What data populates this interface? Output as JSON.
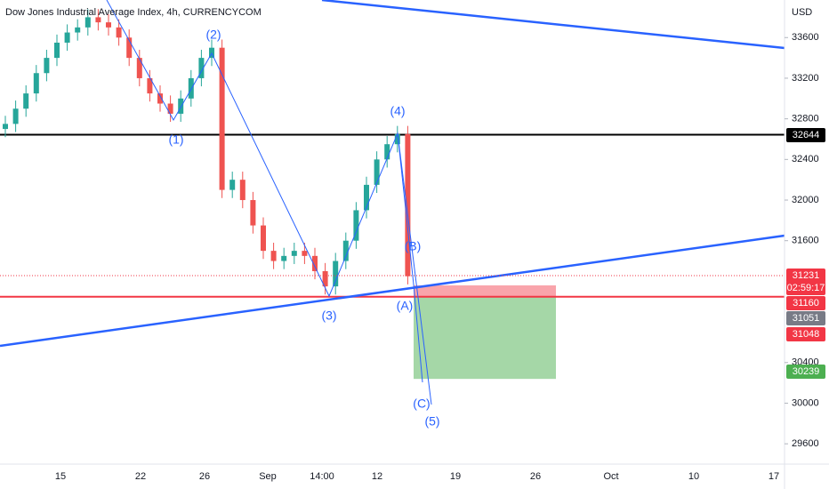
{
  "chart_data": {
    "type": "candlestick",
    "title": "Dow Jones Industrial Average Index, 4h, CURRENCYCOM",
    "currency": "USD",
    "ylim": [
      29400,
      33970
    ],
    "yticks": [
      33600,
      33200,
      32800,
      32400,
      32000,
      31600,
      30400,
      30000,
      29600
    ],
    "x_labels": [
      "15",
      "22",
      "26",
      "Sep",
      "14:00",
      "12",
      "19",
      "26",
      "Oct",
      "10",
      "17"
    ],
    "candles": [
      [
        32700,
        32830,
        32620,
        32750
      ],
      [
        32750,
        32980,
        32670,
        32900
      ],
      [
        32900,
        33130,
        32820,
        33050
      ],
      [
        33050,
        33330,
        32970,
        33250
      ],
      [
        33250,
        33480,
        33170,
        33400
      ],
      [
        33400,
        33630,
        33320,
        33550
      ],
      [
        33550,
        33730,
        33470,
        33650
      ],
      [
        33650,
        33780,
        33570,
        33700
      ],
      [
        33700,
        33880,
        33620,
        33800
      ],
      [
        33800,
        33880,
        33670,
        33750
      ],
      [
        33750,
        33830,
        33620,
        33700
      ],
      [
        33700,
        33780,
        33520,
        33600
      ],
      [
        33600,
        33680,
        33320,
        33400
      ],
      [
        33400,
        33480,
        33120,
        33200
      ],
      [
        33200,
        33280,
        32970,
        33050
      ],
      [
        33050,
        33130,
        32870,
        32950
      ],
      [
        32950,
        33030,
        32770,
        32850
      ],
      [
        32850,
        33080,
        32770,
        33000
      ],
      [
        33000,
        33280,
        32920,
        33200
      ],
      [
        33200,
        33480,
        33120,
        33400
      ],
      [
        33400,
        33580,
        33320,
        33500
      ],
      [
        33500,
        33580,
        32020,
        32100
      ],
      [
        32100,
        32280,
        32020,
        32200
      ],
      [
        32200,
        32280,
        31920,
        32000
      ],
      [
        32000,
        32080,
        31670,
        31750
      ],
      [
        31750,
        31830,
        31420,
        31500
      ],
      [
        31500,
        31580,
        31320,
        31400
      ],
      [
        31400,
        31530,
        31320,
        31450
      ],
      [
        31450,
        31580,
        31370,
        31500
      ],
      [
        31500,
        31580,
        31370,
        31450
      ],
      [
        31450,
        31530,
        31220,
        31300
      ],
      [
        31300,
        31380,
        31070,
        31150
      ],
      [
        31150,
        31480,
        31070,
        31400
      ],
      [
        31400,
        31680,
        31320,
        31600
      ],
      [
        31600,
        31980,
        31520,
        31900
      ],
      [
        31900,
        32230,
        31820,
        32150
      ],
      [
        32150,
        32480,
        32070,
        32400
      ],
      [
        32400,
        32630,
        32320,
        32550
      ],
      [
        32550,
        32730,
        32470,
        32650
      ],
      [
        32650,
        32730,
        31170,
        31250
      ]
    ],
    "wave_labels": [
      "(2)",
      "(1)",
      "(4)",
      "(B)",
      "(3)",
      "(A)",
      "(C)",
      "(5)"
    ],
    "levels": [
      {
        "price": 32644,
        "color": "#000000"
      },
      {
        "price": 31048,
        "color": "#f23645"
      }
    ],
    "position": {
      "stop": 31160,
      "entry": 31048,
      "target": 30239
    },
    "price_labels": [
      {
        "text": 32644,
        "color": "#000000"
      },
      {
        "text": 31231,
        "color": "#f23645"
      },
      {
        "text": "02:59:17",
        "color": "#f23645"
      },
      {
        "text": 31160,
        "color": "#f23645"
      },
      {
        "text": 31051,
        "color": "#787b86"
      },
      {
        "text": 31048,
        "color": "#f23645"
      },
      {
        "text": 30239,
        "color": "#4caf50"
      }
    ]
  }
}
